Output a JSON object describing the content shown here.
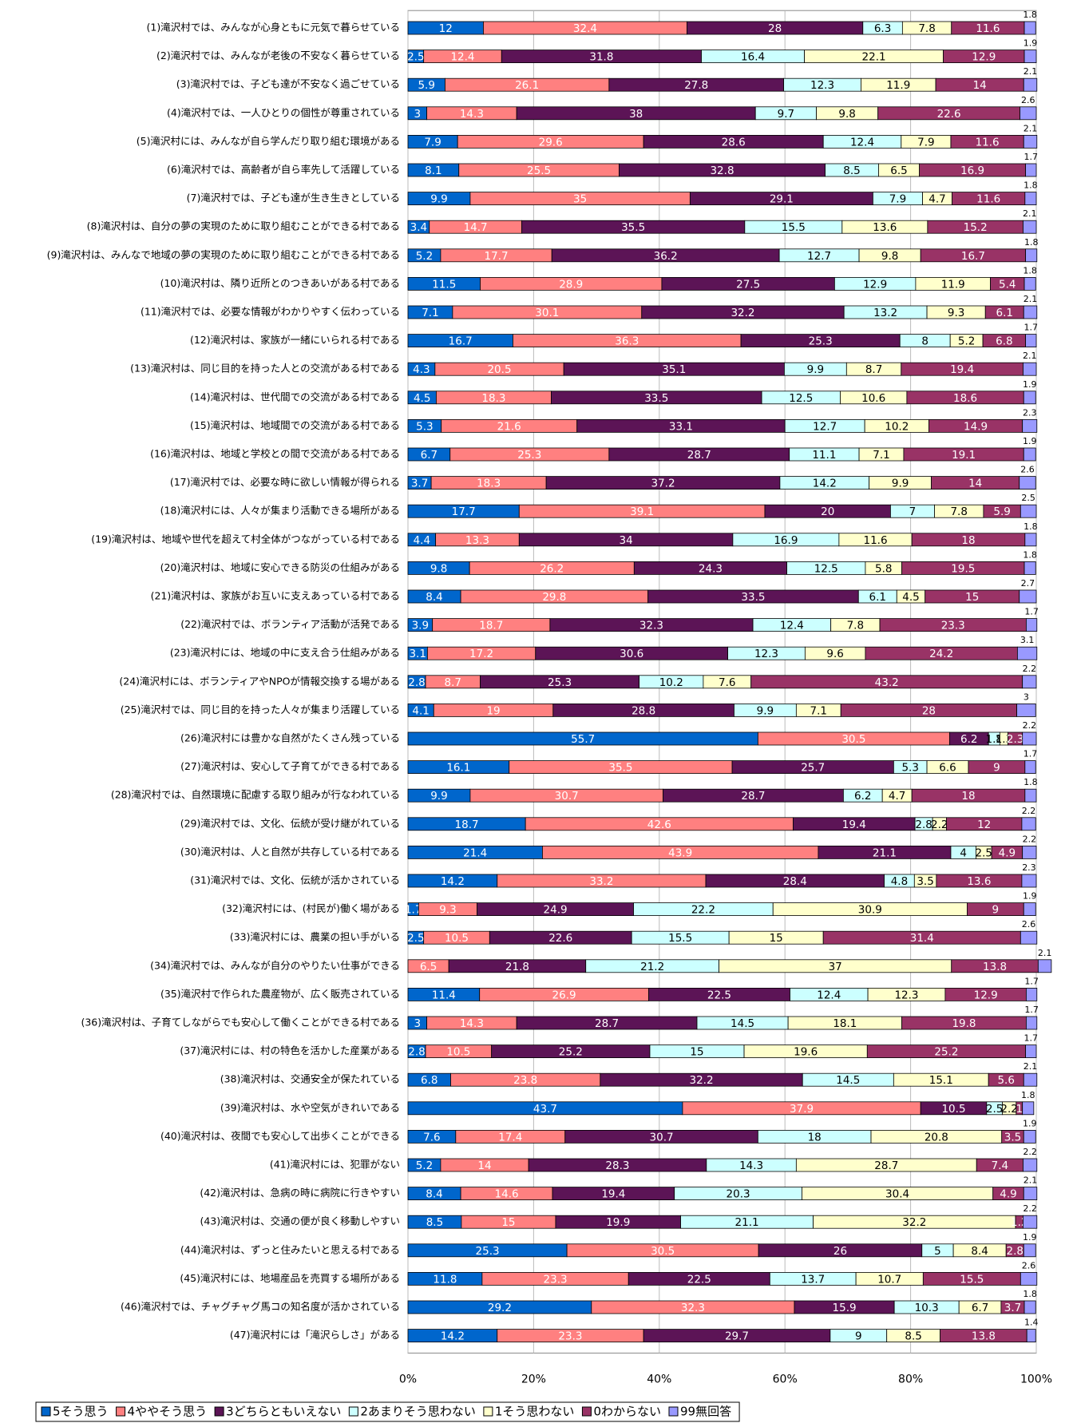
{
  "chart_data": {
    "type": "stacked-bar-horizontal",
    "categories": [
      "(1)滝沢村では、みんなが心身ともに元気で暮らせている",
      "(2)滝沢村では、みんなが老後の不安なく暮らせている",
      "(3)滝沢村では、子ども達が不安なく過ごせている",
      "(4)滝沢村では、一人ひとりの個性が尊重されている",
      "(5)滝沢村には、みんなが自ら学んだり取り組む環境がある",
      "(6)滝沢村では、高齢者が自ら率先して活躍している",
      "(7)滝沢村では、子ども達が生き生きとしている",
      "(8)滝沢村は、自分の夢の実現のために取り組むことができる村である",
      "(9)滝沢村は、みんなで地域の夢の実現のために取り組むことができる村である",
      "(10)滝沢村は、隣り近所とのつきあいがある村である",
      "(11)滝沢村では、必要な情報がわかりやすく伝わっている",
      "(12)滝沢村は、家族が一緒にいられる村である",
      "(13)滝沢村は、同じ目的を持った人との交流がある村である",
      "(14)滝沢村は、世代間での交流がある村である",
      "(15)滝沢村は、地域間での交流がある村である",
      "(16)滝沢村は、地域と学校との間で交流がある村である",
      "(17)滝沢村では、必要な時に欲しい情報が得られる",
      "(18)滝沢村には、人々が集まり活動できる場所がある",
      "(19)滝沢村は、地域や世代を超えて村全体がつながっている村である",
      "(20)滝沢村は、地域に安心できる防災の仕組みがある",
      "(21)滝沢村は、家族がお互いに支えあっている村である",
      "(22)滝沢村では、ボランティア活動が活発である",
      "(23)滝沢村には、地域の中に支え合う仕組みがある",
      "(24)滝沢村には、ボランティアやNPOが情報交換する場がある",
      "(25)滝沢村では、同じ目的を持った人々が集まり活躍している",
      "(26)滝沢村には豊かな自然がたくさん残っている",
      "(27)滝沢村は、安心して子育てができる村である",
      "(28)滝沢村では、自然環境に配慮する取り組みが行なわれている",
      "(29)滝沢村では、文化、伝統が受け継がれている",
      "(30)滝沢村は、人と自然が共存している村である",
      "(31)滝沢村では、文化、伝統が活かされている",
      "(32)滝沢村には、(村民が)働く場がある",
      "(33)滝沢村には、農業の担い手がいる",
      "(34)滝沢村では、みんなが自分のやりたい仕事ができる",
      "(35)滝沢村で作られた農産物が、広く販売されている",
      "(36)滝沢村は、子育てしながらでも安心して働くことができる村である",
      "(37)滝沢村には、村の特色を活かした産業がある",
      "(38)滝沢村は、交通安全が保たれている",
      "(39)滝沢村は、水や空気がきれいである",
      "(40)滝沢村は、夜間でも安心して出歩くことができる",
      "(41)滝沢村には、犯罪がない",
      "(42)滝沢村は、急病の時に病院に行きやすい",
      "(43)滝沢村は、交通の便が良く移動しやすい",
      "(44)滝沢村は、ずっと住みたいと思える村である",
      "(45)滝沢村には、地場産品を売買する場所がある",
      "(46)滝沢村では、チャグチャグ馬コの知名度が活かされている",
      "(47)滝沢村には「滝沢らしさ」がある"
    ],
    "series": [
      {
        "name": "5そう思う",
        "color": "#0066cc",
        "values": [
          12.0,
          2.5,
          5.9,
          3.0,
          7.9,
          8.1,
          9.9,
          3.4,
          5.2,
          11.5,
          7.1,
          16.7,
          4.3,
          4.5,
          5.3,
          6.7,
          3.7,
          17.7,
          4.4,
          9.8,
          8.4,
          3.9,
          3.1,
          2.8,
          4.1,
          55.7,
          16.1,
          9.9,
          18.7,
          21.4,
          14.2,
          1.7,
          2.5,
          null,
          11.4,
          3.0,
          2.8,
          6.8,
          43.7,
          7.6,
          5.2,
          8.4,
          8.5,
          25.3,
          11.8,
          29.2,
          14.2
        ]
      },
      {
        "name": "4ややそう思う",
        "color": "#ff8080",
        "values": [
          32.4,
          12.4,
          26.1,
          14.3,
          29.6,
          25.5,
          35.0,
          14.7,
          17.7,
          28.9,
          30.1,
          36.3,
          20.5,
          18.3,
          21.6,
          25.3,
          18.3,
          39.1,
          13.3,
          26.2,
          29.8,
          18.7,
          17.2,
          8.7,
          19.0,
          30.5,
          35.5,
          30.7,
          42.6,
          43.9,
          33.2,
          9.3,
          10.5,
          6.5,
          26.9,
          14.3,
          10.5,
          23.8,
          37.9,
          17.4,
          14.0,
          14.6,
          15.0,
          30.5,
          23.3,
          32.3,
          23.3
        ]
      },
      {
        "name": "3どちらともいえない",
        "color": "#5c1456",
        "values": [
          28.0,
          31.8,
          27.8,
          38.0,
          28.6,
          32.8,
          29.1,
          35.5,
          36.2,
          27.5,
          32.2,
          25.3,
          35.1,
          33.5,
          33.1,
          28.7,
          37.2,
          20.0,
          34.0,
          24.3,
          33.5,
          32.3,
          30.6,
          25.3,
          28.8,
          6.2,
          25.7,
          28.7,
          19.4,
          21.1,
          28.4,
          24.9,
          22.6,
          21.8,
          22.5,
          28.7,
          25.2,
          32.2,
          10.5,
          30.7,
          28.3,
          19.4,
          19.9,
          26.0,
          22.5,
          15.9,
          29.7
        ]
      },
      {
        "name": "2あまりそう思わない",
        "color": "#ccffff",
        "values": [
          6.3,
          16.4,
          12.3,
          9.7,
          12.4,
          8.5,
          7.9,
          15.5,
          12.7,
          12.9,
          13.2,
          8.0,
          9.9,
          12.5,
          12.7,
          11.1,
          14.2,
          7.0,
          16.9,
          12.5,
          6.1,
          12.4,
          12.3,
          10.2,
          9.9,
          1.8,
          5.3,
          6.2,
          2.8,
          4.0,
          4.8,
          22.2,
          15.5,
          21.2,
          12.4,
          14.5,
          15.0,
          14.5,
          2.5,
          18.0,
          14.3,
          20.3,
          21.1,
          5.0,
          13.7,
          10.3,
          9.0
        ]
      },
      {
        "name": "1そう思わない",
        "color": "#ffffcc",
        "values": [
          7.8,
          22.1,
          11.9,
          9.8,
          7.9,
          6.5,
          4.7,
          13.6,
          9.8,
          11.9,
          9.3,
          5.2,
          8.7,
          10.6,
          10.2,
          7.1,
          9.9,
          7.8,
          11.6,
          5.8,
          4.5,
          7.8,
          9.6,
          7.6,
          7.1,
          1.3,
          6.6,
          4.7,
          2.2,
          2.5,
          3.5,
          30.9,
          15.0,
          37.0,
          12.3,
          18.1,
          19.6,
          15.1,
          2.2,
          20.8,
          28.7,
          30.4,
          32.2,
          8.4,
          10.7,
          6.7,
          8.5
        ]
      },
      {
        "name": "0わからない",
        "color": "#993366",
        "values": [
          11.6,
          12.9,
          14.0,
          22.6,
          11.6,
          16.9,
          11.6,
          15.2,
          16.7,
          5.4,
          6.1,
          6.8,
          19.4,
          18.6,
          14.9,
          19.1,
          14.0,
          5.9,
          18.0,
          19.5,
          15.0,
          23.3,
          24.2,
          43.2,
          28.0,
          2.3,
          9.0,
          18.0,
          12.0,
          4.9,
          13.6,
          9.0,
          31.4,
          13.8,
          12.9,
          19.8,
          25.2,
          5.6,
          1.0,
          3.5,
          7.4,
          4.9,
          1.2,
          2.8,
          15.5,
          3.7,
          13.8
        ]
      },
      {
        "name": "99無回答",
        "color": "#9999ff",
        "values": [
          1.8,
          1.9,
          2.1,
          2.6,
          2.1,
          1.7,
          1.8,
          2.1,
          1.8,
          1.8,
          2.1,
          1.7,
          2.1,
          1.9,
          2.3,
          1.9,
          2.6,
          2.5,
          1.8,
          1.8,
          2.7,
          1.7,
          3.1,
          2.2,
          3.0,
          2.2,
          1.7,
          1.8,
          2.2,
          2.2,
          2.3,
          1.9,
          2.6,
          2.1,
          1.7,
          1.7,
          1.7,
          2.1,
          1.8,
          1.9,
          2.2,
          2.1,
          2.2,
          1.9,
          2.6,
          1.8,
          1.4
        ]
      }
    ],
    "xlim": [
      0,
      100
    ],
    "xticks": [
      {
        "value": 0,
        "label": "0%"
      },
      {
        "value": 20,
        "label": "20%"
      },
      {
        "value": 40,
        "label": "40%"
      },
      {
        "value": 60,
        "label": "60%"
      },
      {
        "value": 80,
        "label": "80%"
      },
      {
        "value": 100,
        "label": "100%"
      }
    ],
    "grid": true,
    "legend": "bottom"
  }
}
